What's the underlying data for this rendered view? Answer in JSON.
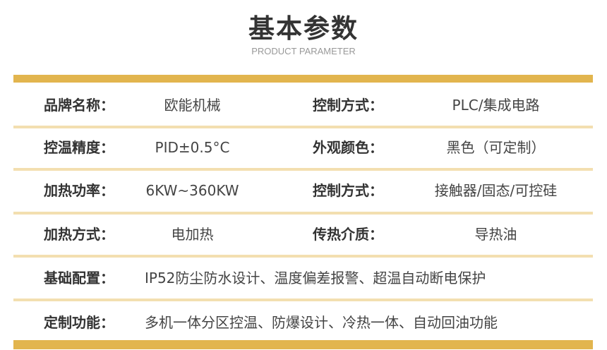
{
  "header": {
    "title": "基本参数",
    "subtitle": "PRODUCT PARAMETER"
  },
  "colors": {
    "accent": "#e2b54e",
    "divider": "#f3dfb0"
  },
  "rows": [
    {
      "label": "品牌名称：",
      "value": "欧能机械",
      "label2": "控制方式：",
      "value2": "PLC/集成电路"
    },
    {
      "label": "控温精度：",
      "value": "PID±0.5°C",
      "label2": "外观颜色：",
      "value2": "黑色（可定制）"
    },
    {
      "label": "加热功率：",
      "value": "6KW~360KW",
      "label2": "控制方式：",
      "value2": "接触器/固态/可控硅"
    },
    {
      "label": "加热方式：",
      "value": "电加热",
      "label2": "传热介质：",
      "value2": "导热油"
    },
    {
      "label": "基础配置：",
      "value": "IP52防尘防水设计、温度偏差报警、超温自动断电保护"
    },
    {
      "label": "定制功能：",
      "value": "多机一体分区控温、防爆设计、冷热一体、自动回油功能"
    }
  ]
}
